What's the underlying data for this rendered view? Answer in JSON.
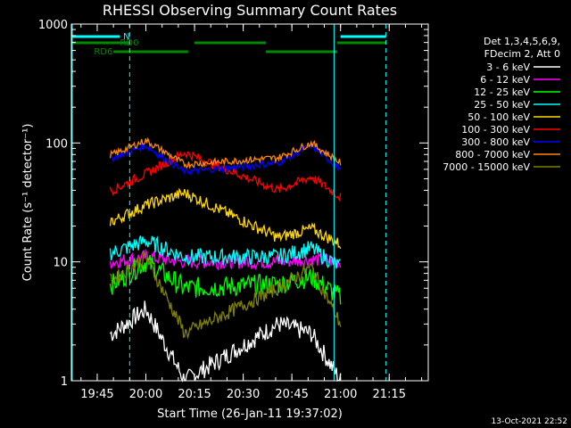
{
  "chart_data": {
    "type": "line",
    "title": "RHESSI Observing Summary Count Rates",
    "xlabel": "Start Time (26-Jan-11 19:37:02)",
    "ylabel": "Count Rate (s⁻¹ detector⁻¹)",
    "yscale": "log",
    "ylim": [
      1,
      1000
    ],
    "xlim_minutes_after_19_37_02": [
      0,
      110
    ],
    "x_ticks": [
      "19:45",
      "20:00",
      "20:15",
      "20:30",
      "20:45",
      "21:00",
      "21:15"
    ],
    "y_ticks": [
      "1",
      "10",
      "100",
      "1000"
    ],
    "legend_header": [
      "Det 1,3,4,5,6,9,",
      "FDecim 2, Att 0"
    ],
    "timestamp": "13-Oct-2021 22:52",
    "flags": [
      {
        "name": "N",
        "color": "#00ffff",
        "segments": [
          [
            "19:37",
            "19:52"
          ],
          [
            "21:00",
            "21:14"
          ]
        ]
      },
      {
        "name": "RD0",
        "color": "#008800",
        "segments": [
          [
            "19:37",
            "19:55"
          ],
          [
            "20:15",
            "20:37"
          ],
          [
            "20:59",
            "21:14"
          ]
        ]
      },
      {
        "name": "RD6",
        "color": "#008800",
        "segments": [
          [
            "19:50",
            "20:13"
          ],
          [
            "20:37",
            "20:59"
          ]
        ]
      }
    ],
    "markers": {
      "solid_cyan": [
        "19:37",
        "20:58"
      ],
      "dashed_cyan": [
        "19:55",
        "21:14"
      ]
    },
    "data_gaps": [
      [
        "19:37",
        "19:49"
      ],
      [
        "21:00",
        "21:15"
      ]
    ],
    "series": [
      {
        "name": "3 - 6 keV",
        "color": "#ffffff",
        "approx": [
          [
            19.83,
            2.5
          ],
          [
            20.0,
            4.0
          ],
          [
            20.2,
            1.0
          ],
          [
            20.68,
            3.0
          ],
          [
            20.85,
            2.5
          ],
          [
            21.0,
            1.0
          ]
        ]
      },
      {
        "name": "6 - 12 keV",
        "color": "#ff00ff",
        "approx": [
          [
            19.83,
            10
          ],
          [
            20.0,
            11
          ],
          [
            20.2,
            10
          ],
          [
            20.68,
            10
          ],
          [
            20.85,
            10.5
          ],
          [
            21.0,
            10
          ]
        ]
      },
      {
        "name": "12 - 25 keV",
        "color": "#00ff00",
        "approx": [
          [
            19.83,
            6.5
          ],
          [
            20.0,
            10
          ],
          [
            20.2,
            6
          ],
          [
            20.68,
            6.5
          ],
          [
            20.85,
            7.5
          ],
          [
            21.0,
            5
          ]
        ]
      },
      {
        "name": "25 - 50 keV",
        "color": "#00ffff",
        "approx": [
          [
            19.83,
            12
          ],
          [
            20.0,
            15
          ],
          [
            20.2,
            11
          ],
          [
            20.68,
            11
          ],
          [
            20.85,
            13
          ],
          [
            21.0,
            9
          ]
        ]
      },
      {
        "name": "50 - 100 keV",
        "color": "#ffd700",
        "approx": [
          [
            19.83,
            22
          ],
          [
            20.0,
            30
          ],
          [
            20.2,
            38
          ],
          [
            20.68,
            16
          ],
          [
            20.85,
            19
          ],
          [
            21.0,
            14
          ]
        ]
      },
      {
        "name": "100 - 300 keV",
        "color": "#ff0000",
        "approx": [
          [
            19.83,
            40
          ],
          [
            20.0,
            55
          ],
          [
            20.2,
            83
          ],
          [
            20.68,
            40
          ],
          [
            20.85,
            52
          ],
          [
            21.0,
            35
          ]
        ]
      },
      {
        "name": "300 - 800 keV",
        "color": "#0000ff",
        "approx": [
          [
            19.83,
            75
          ],
          [
            20.0,
            95
          ],
          [
            20.2,
            57
          ],
          [
            20.68,
            68
          ],
          [
            20.85,
            95
          ],
          [
            21.0,
            60
          ]
        ]
      },
      {
        "name": "800 - 7000 keV",
        "color": "#ff8800",
        "approx": [
          [
            19.83,
            80
          ],
          [
            20.0,
            105
          ],
          [
            20.2,
            66
          ],
          [
            20.68,
            75
          ],
          [
            20.85,
            100
          ],
          [
            21.0,
            68
          ]
        ]
      },
      {
        "name": "7000 - 15000 keV",
        "color": "#808000",
        "approx": [
          [
            19.83,
            7
          ],
          [
            20.0,
            11
          ],
          [
            20.2,
            2.5
          ],
          [
            20.68,
            6
          ],
          [
            20.85,
            9
          ],
          [
            21.0,
            3
          ]
        ]
      }
    ]
  }
}
